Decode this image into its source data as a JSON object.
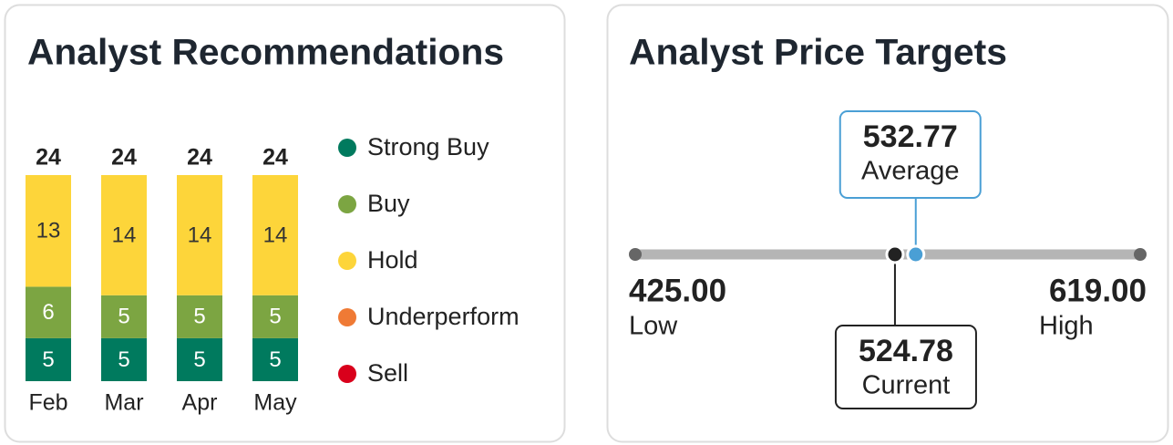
{
  "recommendations": {
    "type": "bar",
    "title": "Analyst Recommendations",
    "categories": [
      "Feb",
      "Mar",
      "Apr",
      "May"
    ],
    "totals": [
      24,
      24,
      24,
      24
    ],
    "series": [
      {
        "name": "Strong Buy",
        "color": "#007a5e",
        "values": [
          5,
          5,
          5,
          5
        ]
      },
      {
        "name": "Buy",
        "color": "#7ca542",
        "values": [
          6,
          5,
          5,
          5
        ]
      },
      {
        "name": "Hold",
        "color": "#fdd53a",
        "values": [
          13,
          14,
          14,
          14
        ]
      },
      {
        "name": "Underperform",
        "color": "#ef7a35",
        "values": [
          0,
          0,
          0,
          0
        ]
      },
      {
        "name": "Sell",
        "color": "#d9001b",
        "values": [
          0,
          0,
          0,
          0
        ]
      }
    ]
  },
  "price_targets": {
    "title": "Analyst Price Targets",
    "points": [
      {
        "name": "Low",
        "value": 425.0,
        "label": "425.00"
      },
      {
        "name": "Average",
        "value": 532.77,
        "label": "532.77",
        "color": "#4a9fd5"
      },
      {
        "name": "Current",
        "value": 524.78,
        "label": "524.78",
        "color": "#222222"
      },
      {
        "name": "High",
        "value": 619.0,
        "label": "619.00"
      }
    ]
  }
}
